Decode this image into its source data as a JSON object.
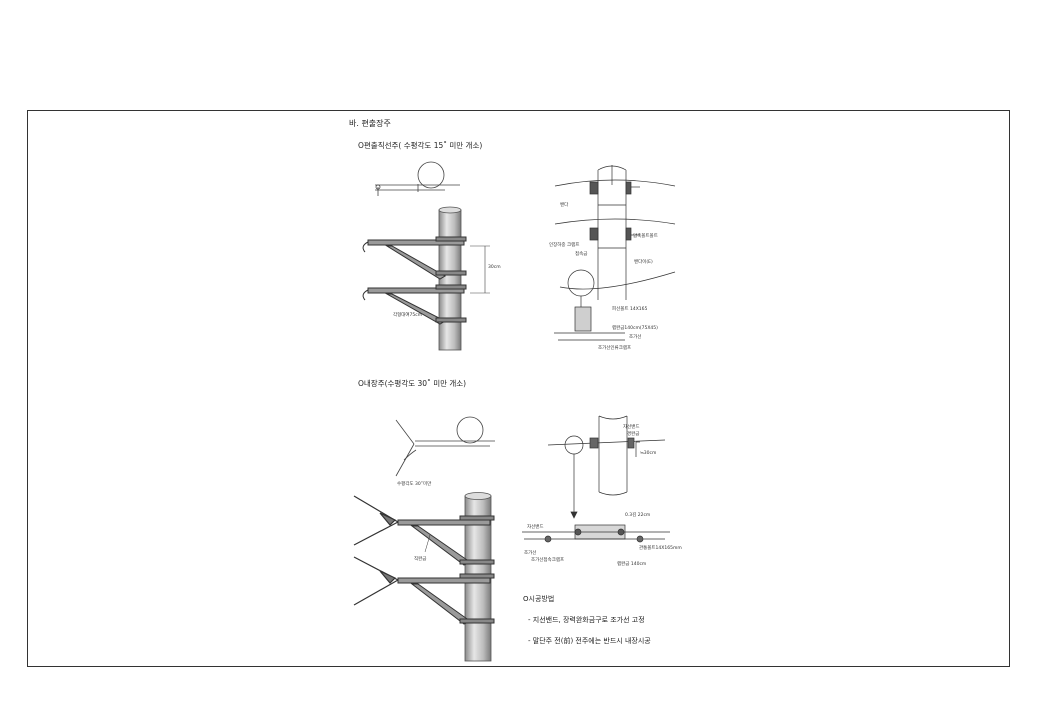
{
  "section_title": "바. 편출장주",
  "subsection1": "O편출직선주( 수평각도 15˚ 미만 개소)",
  "subsection2": "O내장주(수평각도 30˚ 미만 개소)",
  "labels1": {
    "dim_30cm": "30cm",
    "angle_bracket": "각형대여75cm",
    "band": "밴다",
    "insulator_clamp": "인장하중\n크램프",
    "join_metal": "접속금",
    "compression_bolt": "압축볼트볼트",
    "band_right": "밴다이(E)",
    "bolt": "피선볼트 14X165",
    "angle_metal": "랩완금140cm(75X45)",
    "guy_wire": "조가선",
    "guy_clamp": "조가선인류크램프"
  },
  "labels2": {
    "wire_band": "자선밴드",
    "tension_clamp": "경완금",
    "dim_30cm": "≒30cm",
    "angle_note": "수평각도\n30˚미만",
    "bracket_label": "직완금",
    "len_22cm": "0.3김 22cm",
    "wire_band_left": "자선밴드",
    "guy_left": "조가선",
    "guy_clamp": "조가선접속크램프",
    "bolt": "관통볼트14X165mm",
    "angle_metal": "랩완금 140cm"
  },
  "method": {
    "title": "O시공방법",
    "items": [
      "- 지선밴드, 장력완화금구로 조가선 고정",
      "- 말단주 전(前) 전주에는 반드시 내장시공"
    ]
  }
}
